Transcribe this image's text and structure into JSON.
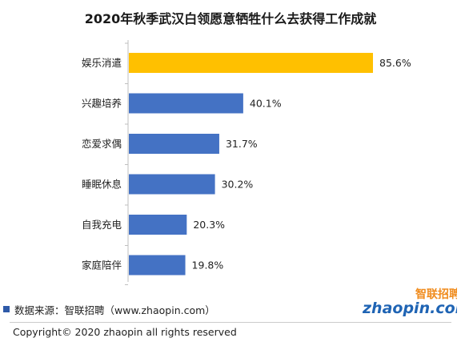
{
  "chart_data": {
    "type": "bar",
    "orientation": "horizontal",
    "title": "2020年秋季武汉白领愿意牺牲什么去获得工作成就",
    "categories": [
      "娱乐消遣",
      "兴趣培养",
      "恋爱求偶",
      "睡眠休息",
      "自我充电",
      "家庭陪伴"
    ],
    "values": [
      85.6,
      40.1,
      31.7,
      30.2,
      20.3,
      19.8
    ],
    "value_labels": [
      "85.6%",
      "40.1%",
      "31.7%",
      "30.2%",
      "20.3%",
      "19.8%"
    ],
    "highlight_category": "娱乐消遣",
    "colors": {
      "default": "#4472c4",
      "highlight": "#ffc000"
    },
    "xlim": [
      0,
      85.6
    ],
    "grid": false,
    "legend": "none"
  },
  "footer": {
    "source": "数据来源：智联招聘（www.zhaopin.com）",
    "copyright": "Copyright© 2020 zhaopin all rights reserved"
  },
  "logo": {
    "text_top": "智联招聘",
    "text_bottom": "zhaopin.com",
    "colors": {
      "orange": "#f08c1e",
      "blue": "#1f64b4"
    }
  }
}
